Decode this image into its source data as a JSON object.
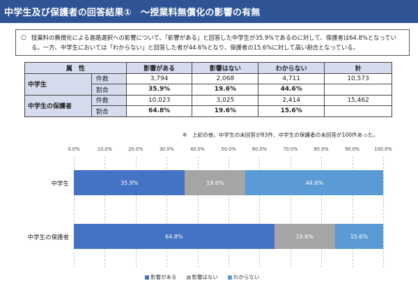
{
  "header": {
    "title": "中学生及び保護者の回答結果①　～授業料無償化の影響の有無"
  },
  "summary": {
    "mark": "○",
    "text": "授業料の無償化による進路選択への影響について、「影響がある」と回答した中学生が35.9%であるのに対して、保護者は64.8%となっている。一方、中学生においては「わからない」と回答した者が44.6%となり、保護者の15.6%に対して高い割合となっている。"
  },
  "table": {
    "headers": [
      "属　性",
      "影響がある",
      "影響はない",
      "わからない",
      "計"
    ],
    "groups": [
      {
        "label": "中学生",
        "rows": [
          {
            "label": "件数",
            "cells": [
              "3,794",
              "2,068",
              "4,711",
              "10,573"
            ]
          },
          {
            "label": "割合",
            "cells": [
              "35.9%",
              "19.6%",
              "44.6%",
              ""
            ]
          }
        ]
      },
      {
        "label": "中学生の保護者",
        "rows": [
          {
            "label": "件数",
            "cells": [
              "10,023",
              "3,025",
              "2,414",
              "15,462"
            ]
          },
          {
            "label": "割合",
            "cells": [
              "64.8%",
              "19.6%",
              "15.6%",
              ""
            ]
          }
        ]
      }
    ]
  },
  "note": "※　上記の他、中学生の未回答が83件、中学生の保護者の未回答が100件あった。",
  "chart_data": {
    "type": "bar",
    "orientation": "horizontal",
    "stacked": true,
    "categories": [
      "中学生",
      "中学生の保護者"
    ],
    "series": [
      {
        "name": "影響がある",
        "values": [
          35.9,
          64.8
        ],
        "labels": [
          "35.9%",
          "64.8%"
        ],
        "color": "#4472c4"
      },
      {
        "name": "影響はない",
        "values": [
          19.6,
          19.6
        ],
        "labels": [
          "19.6%",
          "19.6%"
        ],
        "color": "#a5a5a5"
      },
      {
        "name": "わからない",
        "values": [
          44.6,
          15.6
        ],
        "labels": [
          "44.6%",
          "15.6%"
        ],
        "color": "#5b9bd5"
      }
    ],
    "xlim": [
      0,
      100
    ],
    "ticks": [
      "0.0%",
      "10.0%",
      "20.0%",
      "30.0%",
      "40.0%",
      "50.0%",
      "60.0%",
      "70.0%",
      "80.0%",
      "90.0%",
      "100.0%"
    ],
    "grid": true,
    "legend": "bottom"
  }
}
